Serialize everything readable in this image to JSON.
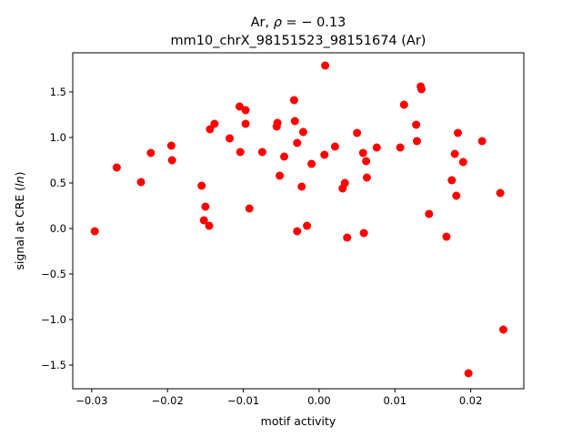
{
  "chart_data": {
    "type": "scatter",
    "title_line1": "Ar, ρ = − 0.13",
    "title_line2": "mm10_chrX_98151523_98151674 (Ar)",
    "xlabel": "motif activity",
    "ylabel": "signal at CRE (ln)",
    "xlim": [
      -0.0325,
      0.027
    ],
    "ylim": [
      -1.76,
      1.93
    ],
    "x_ticks": [
      -0.03,
      -0.02,
      -0.01,
      0.0,
      0.01,
      0.02
    ],
    "x_tick_labels": [
      "−0.03",
      "−0.02",
      "−0.01",
      "0.00",
      "0.01",
      "0.02"
    ],
    "y_ticks": [
      -1.5,
      -1.0,
      -0.5,
      0.0,
      0.5,
      1.0,
      1.5
    ],
    "y_tick_labels": [
      "−1.5",
      "−1.0",
      "−0.5",
      "0.0",
      "0.5",
      "1.0",
      "1.5"
    ],
    "grid": false,
    "marker_color": "#ff0000",
    "points": [
      [
        -0.0296,
        -0.03
      ],
      [
        -0.0267,
        0.67
      ],
      [
        -0.0235,
        0.51
      ],
      [
        -0.0222,
        0.83
      ],
      [
        -0.0195,
        0.91
      ],
      [
        -0.0194,
        0.75
      ],
      [
        -0.0155,
        0.47
      ],
      [
        -0.015,
        0.24
      ],
      [
        -0.0152,
        0.09
      ],
      [
        -0.0145,
        0.03
      ],
      [
        -0.0144,
        1.09
      ],
      [
        -0.0138,
        1.15
      ],
      [
        -0.0118,
        0.99
      ],
      [
        -0.0105,
        1.34
      ],
      [
        -0.0104,
        0.84
      ],
      [
        -0.0097,
        1.3
      ],
      [
        -0.0097,
        1.15
      ],
      [
        -0.0092,
        0.22
      ],
      [
        -0.0075,
        0.84
      ],
      [
        -0.0056,
        1.12
      ],
      [
        -0.0055,
        1.16
      ],
      [
        -0.0052,
        0.58
      ],
      [
        -0.0046,
        0.79
      ],
      [
        -0.0033,
        1.41
      ],
      [
        -0.0032,
        1.18
      ],
      [
        -0.0029,
        0.94
      ],
      [
        -0.0029,
        -0.03
      ],
      [
        -0.0023,
        0.46
      ],
      [
        -0.0021,
        1.06
      ],
      [
        -0.0016,
        0.03
      ],
      [
        -0.001,
        0.71
      ],
      [
        0.0008,
        1.79
      ],
      [
        0.0007,
        0.81
      ],
      [
        0.0021,
        0.9
      ],
      [
        0.0031,
        0.44
      ],
      [
        0.0034,
        0.5
      ],
      [
        0.0037,
        -0.1
      ],
      [
        0.005,
        1.05
      ],
      [
        0.0058,
        0.83
      ],
      [
        0.0059,
        -0.05
      ],
      [
        0.0062,
        0.74
      ],
      [
        0.0063,
        0.56
      ],
      [
        0.0076,
        0.89
      ],
      [
        0.0107,
        0.89
      ],
      [
        0.0112,
        1.36
      ],
      [
        0.0128,
        1.14
      ],
      [
        0.0129,
        0.96
      ],
      [
        0.0134,
        1.56
      ],
      [
        0.0135,
        1.53
      ],
      [
        0.0145,
        0.16
      ],
      [
        0.0168,
        -0.09
      ],
      [
        0.0175,
        0.53
      ],
      [
        0.0179,
        0.82
      ],
      [
        0.0181,
        0.36
      ],
      [
        0.0183,
        1.05
      ],
      [
        0.019,
        0.73
      ],
      [
        0.0197,
        -1.59
      ],
      [
        0.0215,
        0.96
      ],
      [
        0.0239,
        0.39
      ],
      [
        0.0243,
        -1.11
      ]
    ]
  }
}
